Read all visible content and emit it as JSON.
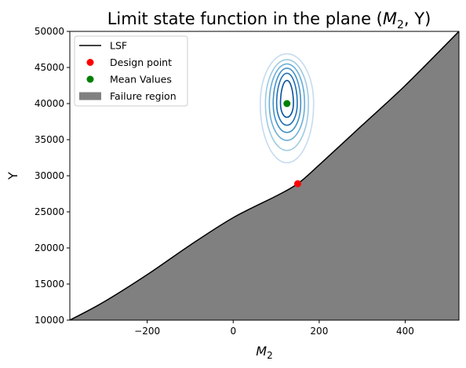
{
  "chart_data": {
    "type": "line",
    "title_prefix": "Limit state function in the plane (",
    "title_math": "M",
    "title_math_sub": "2",
    "title_suffix": ", Y)",
    "xlabel_main": "M",
    "xlabel_sub": "2",
    "ylabel": "Y",
    "xlim": [
      -380,
      525
    ],
    "ylim": [
      10000,
      50000
    ],
    "xticks": [
      -200,
      0,
      200,
      400
    ],
    "yticks": [
      10000,
      15000,
      20000,
      25000,
      30000,
      35000,
      40000,
      45000,
      50000
    ],
    "xtick_labels": [
      "−200",
      "0",
      "200",
      "400"
    ],
    "ytick_labels": [
      "10000",
      "15000",
      "20000",
      "25000",
      "30000",
      "35000",
      "40000",
      "45000",
      "50000"
    ],
    "lsf": {
      "x": [
        -380,
        -300,
        -200,
        -100,
        0,
        100,
        150,
        200,
        300,
        400,
        525
      ],
      "y": [
        10000,
        12550,
        16300,
        20400,
        24200,
        27200,
        28900,
        31500,
        37000,
        42500,
        50000
      ]
    },
    "design_point": {
      "x": 150,
      "y": 28900
    },
    "mean_values": {
      "x": 125,
      "y": 40000
    },
    "contours": {
      "center": {
        "x": 125,
        "y": 40000
      },
      "levels": [
        {
          "rx": 15,
          "ry_up": 3200,
          "ry_down": 1900
        },
        {
          "rx": 24,
          "ry_up": 4200,
          "ry_down": 3000
        },
        {
          "rx": 32,
          "ry_up": 4900,
          "ry_down": 4000
        },
        {
          "rx": 41,
          "ry_up": 5500,
          "ry_down": 5100
        },
        {
          "rx": 50,
          "ry_up": 6100,
          "ry_down": 6500
        },
        {
          "rx": 62,
          "ry_up": 6900,
          "ry_down": 8200
        }
      ],
      "colors": [
        "#08519c",
        "#2171b5",
        "#4292c6",
        "#6baed6",
        "#9ecae1",
        "#c6dbef"
      ]
    },
    "legend": [
      {
        "label": "LSF",
        "kind": "line",
        "color": "#000000"
      },
      {
        "label": "Design point",
        "kind": "dot",
        "color": "#ff0000"
      },
      {
        "label": "Mean Values",
        "kind": "dot",
        "color": "#008000"
      },
      {
        "label": "Failure region",
        "kind": "patch",
        "color": "#808080"
      }
    ],
    "legend_position": "upper-left",
    "grid": false,
    "failure_color": "#808080"
  }
}
